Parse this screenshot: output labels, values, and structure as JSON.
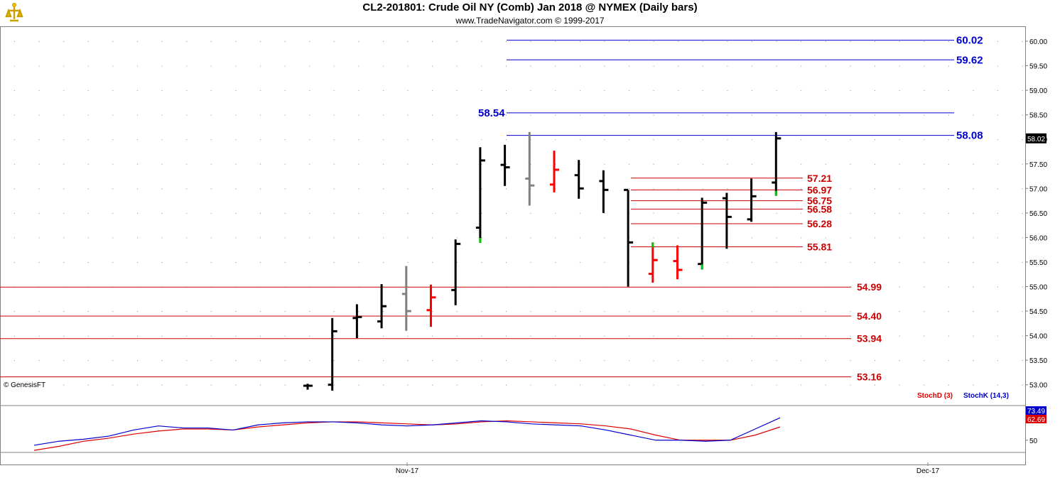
{
  "header": {
    "title": "CL2-201801:  Crude Oil NY (Comb) Jan 2018 @ NYMEX  (Daily bars)",
    "subtitle": "www.TradeNavigator.com © 1999-2017",
    "copyright": "© GenesisFT",
    "logo_icon": "trade-navigator-logo"
  },
  "colors": {
    "up_bar": "#000000",
    "down_bar": "#ff0000",
    "neutral_bar": "#808080",
    "green_tick": "#00cc00",
    "resistance": "#0000cc",
    "support": "#cc0000",
    "stochD": "#dd0000",
    "stochK": "#0000cc"
  },
  "chart_data": [
    {
      "type": "ohlc",
      "title": "CL2-201801:  Crude Oil NY (Comb) Jan 2018 @ NYMEX  (Daily bars)",
      "x_tick_labels": [
        "Nov-17",
        "Dec-17"
      ],
      "y_range": [
        52.7,
        60.2
      ],
      "y_tick_labels": [
        "53.00",
        "53.50",
        "54.00",
        "54.50",
        "55.00",
        "55.50",
        "56.00",
        "56.50",
        "57.00",
        "57.50",
        "58.00",
        "58.50",
        "59.00",
        "59.50",
        "60.00"
      ],
      "last_price": "58.02",
      "grid": "dotted",
      "bars": [
        {
          "o": 52.98,
          "h": 53.02,
          "l": 52.9,
          "c": 52.98,
          "color": "black",
          "tick": null
        },
        {
          "o": 53.0,
          "h": 54.36,
          "l": 52.88,
          "c": 54.09,
          "color": "black",
          "tick": null
        },
        {
          "o": 54.36,
          "h": 54.64,
          "l": 53.95,
          "c": 54.38,
          "color": "black",
          "tick": null
        },
        {
          "o": 54.29,
          "h": 55.05,
          "l": 54.15,
          "c": 54.6,
          "color": "black",
          "tick": null
        },
        {
          "o": 54.85,
          "h": 55.42,
          "l": 54.1,
          "c": 54.5,
          "color": "gray",
          "tick": null
        },
        {
          "o": 54.52,
          "h": 55.04,
          "l": 54.18,
          "c": 54.78,
          "color": "red",
          "tick": null
        },
        {
          "o": 54.93,
          "h": 55.96,
          "l": 54.62,
          "c": 55.87,
          "color": "black",
          "tick": null
        },
        {
          "o": 56.2,
          "h": 57.84,
          "l": 55.89,
          "c": 57.57,
          "color": "black",
          "tick": "low"
        },
        {
          "o": 57.48,
          "h": 57.89,
          "l": 57.05,
          "c": 57.43,
          "color": "black",
          "tick": null
        },
        {
          "o": 57.2,
          "h": 58.15,
          "l": 56.65,
          "c": 57.06,
          "color": "gray",
          "tick": null
        },
        {
          "o": 57.08,
          "h": 57.77,
          "l": 56.92,
          "c": 57.38,
          "color": "red",
          "tick": null
        },
        {
          "o": 57.27,
          "h": 57.58,
          "l": 56.79,
          "c": 57.0,
          "color": "black",
          "tick": null
        },
        {
          "o": 57.15,
          "h": 57.37,
          "l": 56.5,
          "c": 56.97,
          "color": "black",
          "tick": null
        },
        {
          "o": 56.97,
          "h": 56.97,
          "l": 55.0,
          "c": 55.9,
          "color": "black",
          "tick": null
        },
        {
          "o": 55.26,
          "h": 55.9,
          "l": 55.08,
          "c": 55.54,
          "color": "red",
          "tick": "high"
        },
        {
          "o": 55.52,
          "h": 55.84,
          "l": 55.15,
          "c": 55.34,
          "color": "red",
          "tick": null
        },
        {
          "o": 55.46,
          "h": 56.81,
          "l": 55.35,
          "c": 56.71,
          "color": "black",
          "tick": "low"
        },
        {
          "o": 56.8,
          "h": 56.91,
          "l": 55.77,
          "c": 56.42,
          "color": "black",
          "tick": null
        },
        {
          "o": 56.37,
          "h": 57.2,
          "l": 56.32,
          "c": 56.84,
          "color": "black",
          "tick": null
        },
        {
          "o": 57.12,
          "h": 58.15,
          "l": 56.85,
          "c": 58.02,
          "color": "black",
          "tick": "low"
        }
      ],
      "resistance_levels": [
        {
          "label": "60.02",
          "value": 60.02
        },
        {
          "label": "59.62",
          "value": 59.62
        },
        {
          "label": "58.54",
          "value": 58.54
        },
        {
          "label": "58.08",
          "value": 58.08
        }
      ],
      "support_levels": [
        {
          "label": "57.21",
          "value": 57.21
        },
        {
          "label": "56.97",
          "value": 56.97
        },
        {
          "label": "56.75",
          "value": 56.75
        },
        {
          "label": "56.58",
          "value": 56.58
        },
        {
          "label": "56.28",
          "value": 56.28
        },
        {
          "label": "55.81",
          "value": 55.81
        },
        {
          "label": "54.99",
          "value": 54.99
        },
        {
          "label": "54.40",
          "value": 54.4
        },
        {
          "label": "53.94",
          "value": 53.94
        },
        {
          "label": "53.16",
          "value": 53.16
        }
      ]
    },
    {
      "type": "line",
      "title": "",
      "y_range": [
        38,
        84
      ],
      "y_tick_labels": [
        "50"
      ],
      "legend_position": "top-right",
      "series": [
        {
          "name": "StochD (3)",
          "last_label": "62.69",
          "values": [
            40,
            44,
            49,
            52,
            56,
            59,
            61,
            61,
            60,
            63,
            65,
            67,
            68,
            68,
            67,
            66,
            65,
            66,
            68,
            69,
            68,
            67,
            66,
            64,
            61,
            55,
            50,
            50,
            50,
            55,
            63
          ]
        },
        {
          "name": "StochK (14,3)",
          "last_label": "73.49",
          "values": [
            45,
            49,
            51,
            54,
            60,
            64,
            62,
            62,
            60,
            65,
            67,
            68,
            68,
            67,
            65,
            64,
            65,
            67,
            69,
            68,
            66,
            65,
            64,
            60,
            55,
            50,
            50,
            49,
            50,
            61,
            72
          ]
        }
      ]
    }
  ]
}
